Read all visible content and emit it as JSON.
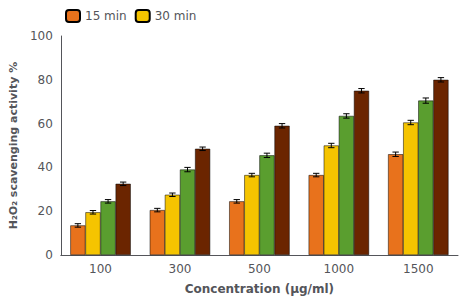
{
  "chart_data": {
    "type": "bar",
    "xlabel": "Concentration (µg/ml)",
    "ylabel": "H₂O₂ scavenging activity %",
    "categories": [
      "100",
      "300",
      "500",
      "1000",
      "1500"
    ],
    "series": [
      {
        "name": "15 min",
        "color": "#E8721C",
        "values": [
          13.5,
          20.5,
          24.5,
          36.5,
          46.0
        ],
        "errors": [
          0.8,
          0.8,
          0.8,
          0.8,
          1.0
        ]
      },
      {
        "name": "30 min",
        "color": "#F5C400",
        "values": [
          19.5,
          27.5,
          36.5,
          50.0,
          60.5
        ],
        "errors": [
          0.8,
          0.8,
          0.8,
          1.0,
          1.0
        ]
      },
      {
        "color": "#5A9E2F",
        "values": [
          24.5,
          39.0,
          45.5,
          63.5,
          70.5
        ],
        "errors": [
          0.8,
          1.0,
          1.0,
          1.0,
          1.2
        ]
      },
      {
        "color": "#6B2500",
        "values": [
          32.5,
          48.5,
          59.0,
          75.0,
          80.0
        ],
        "errors": [
          0.8,
          0.8,
          1.0,
          1.0,
          1.0
        ]
      }
    ],
    "ylim": [
      0,
      100
    ],
    "yticks": [
      0,
      20,
      40,
      60,
      80,
      100
    ],
    "grid": false,
    "legend": "upper left"
  }
}
